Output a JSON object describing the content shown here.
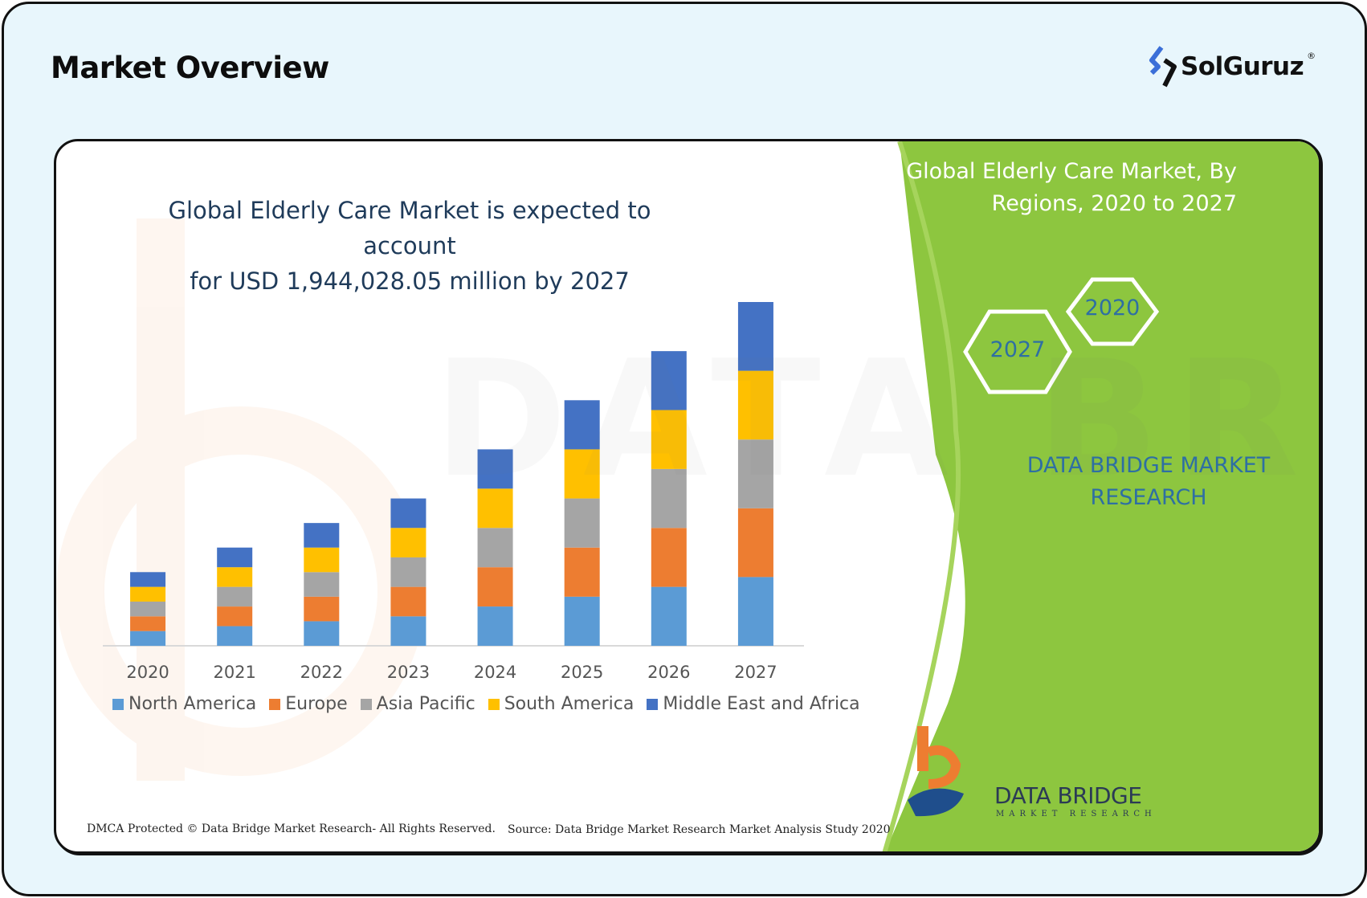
{
  "header": {
    "title": "Market Overview",
    "brand": "SolGuruz",
    "brand_reg": "®",
    "brand_color": "#3b6fd8"
  },
  "infographic": {
    "headline_line1": "Global Elderly Care Market is expected to account",
    "headline_line2": "for USD 1,944,028.05 million by 2027",
    "panel_title_line1": "Global Elderly Care Market, By",
    "panel_title_line2": "Regions, 2020 to 2027",
    "hex_year_a": "2020",
    "hex_year_b": "2027",
    "panel_brand_line1": "DATA BRIDGE MARKET",
    "panel_brand_line2": "RESEARCH",
    "logo_text": "DATA BRIDGE",
    "logo_sub": "MARKET RESEARCH",
    "footer_left": "DMCA Protected © Data Bridge Market Research- All Rights Reserved.",
    "footer_right": "Source: Data Bridge Market Research Market Analysis Study 2020",
    "panel_color": "#8dc63f"
  },
  "chart_data": {
    "type": "bar",
    "stacked": true,
    "title": "",
    "xlabel": "",
    "ylabel": "",
    "categories": [
      "2020",
      "2021",
      "2022",
      "2023",
      "2024",
      "2025",
      "2026",
      "2027"
    ],
    "series": [
      {
        "name": "North America",
        "color": "#5b9bd5",
        "values": [
          3.0,
          4.0,
          5.0,
          6.0,
          8.0,
          10.0,
          12.0,
          14.0
        ]
      },
      {
        "name": "Europe",
        "color": "#ed7d31",
        "values": [
          3.0,
          4.0,
          5.0,
          6.0,
          8.0,
          10.0,
          12.0,
          14.0
        ]
      },
      {
        "name": "Asia Pacific",
        "color": "#a5a5a5",
        "values": [
          3.0,
          4.0,
          5.0,
          6.0,
          8.0,
          10.0,
          12.0,
          14.0
        ]
      },
      {
        "name": "South America",
        "color": "#ffc000",
        "values": [
          3.0,
          4.0,
          5.0,
          6.0,
          8.0,
          10.0,
          12.0,
          14.0
        ]
      },
      {
        "name": "Middle East and Africa",
        "color": "#4472c4",
        "values": [
          3.0,
          4.0,
          5.0,
          6.0,
          8.0,
          10.0,
          12.0,
          14.0
        ]
      }
    ],
    "axis_visible": false,
    "grid": false,
    "legend_position": "bottom"
  }
}
